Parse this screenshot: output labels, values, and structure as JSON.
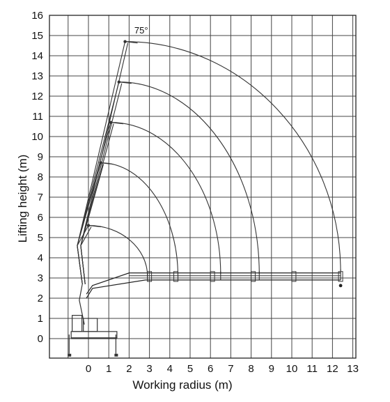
{
  "chart_data": {
    "type": "line",
    "title": "",
    "xlabel": "Working radius (m)",
    "ylabel": "Lifting height (m)",
    "xlim": [
      -1,
      13
    ],
    "ylim": [
      -1,
      16
    ],
    "x_ticks": [
      "0",
      "1",
      "2",
      "3",
      "4",
      "5",
      "6",
      "7",
      "8",
      "9",
      "10",
      "11",
      "12",
      "13"
    ],
    "y_ticks": [
      "0",
      "1",
      "2",
      "3",
      "4",
      "5",
      "6",
      "7",
      "8",
      "9",
      "10",
      "11",
      "12",
      "13",
      "14",
      "15",
      "16"
    ],
    "grid": true,
    "annotations": [
      {
        "text": "75°",
        "x": 2.6,
        "y": 15.25
      }
    ],
    "boom_pivot": {
      "x": -0.3,
      "y": 2.7
    },
    "boom_tips_raised": [
      {
        "x": 0.0,
        "y": 5.6
      },
      {
        "x": 0.6,
        "y": 8.7
      },
      {
        "x": 1.1,
        "y": 10.7
      },
      {
        "x": 1.5,
        "y": 12.7
      },
      {
        "x": 1.8,
        "y": 14.7
      }
    ],
    "reach_envelopes": [
      {
        "top": {
          "x": 0.0,
          "y": 5.6
        },
        "reach_x": 2.9,
        "reach_y": 3.1
      },
      {
        "top": {
          "x": 0.6,
          "y": 8.7
        },
        "reach_x": 4.4,
        "reach_y": 3.1
      },
      {
        "top": {
          "x": 1.1,
          "y": 10.7
        },
        "reach_x": 6.5,
        "reach_y": 3.2
      },
      {
        "top": {
          "x": 1.5,
          "y": 12.7
        },
        "reach_x": 8.4,
        "reach_y": 3.2
      },
      {
        "top": {
          "x": 1.8,
          "y": 14.7
        },
        "reach_x": 12.4,
        "reach_y": 3.3
      }
    ],
    "boom_extended_horizontal": {
      "y_upper": 3.25,
      "y_lower": 2.9,
      "x_start": 0.2,
      "x_end": 12.4
    }
  }
}
